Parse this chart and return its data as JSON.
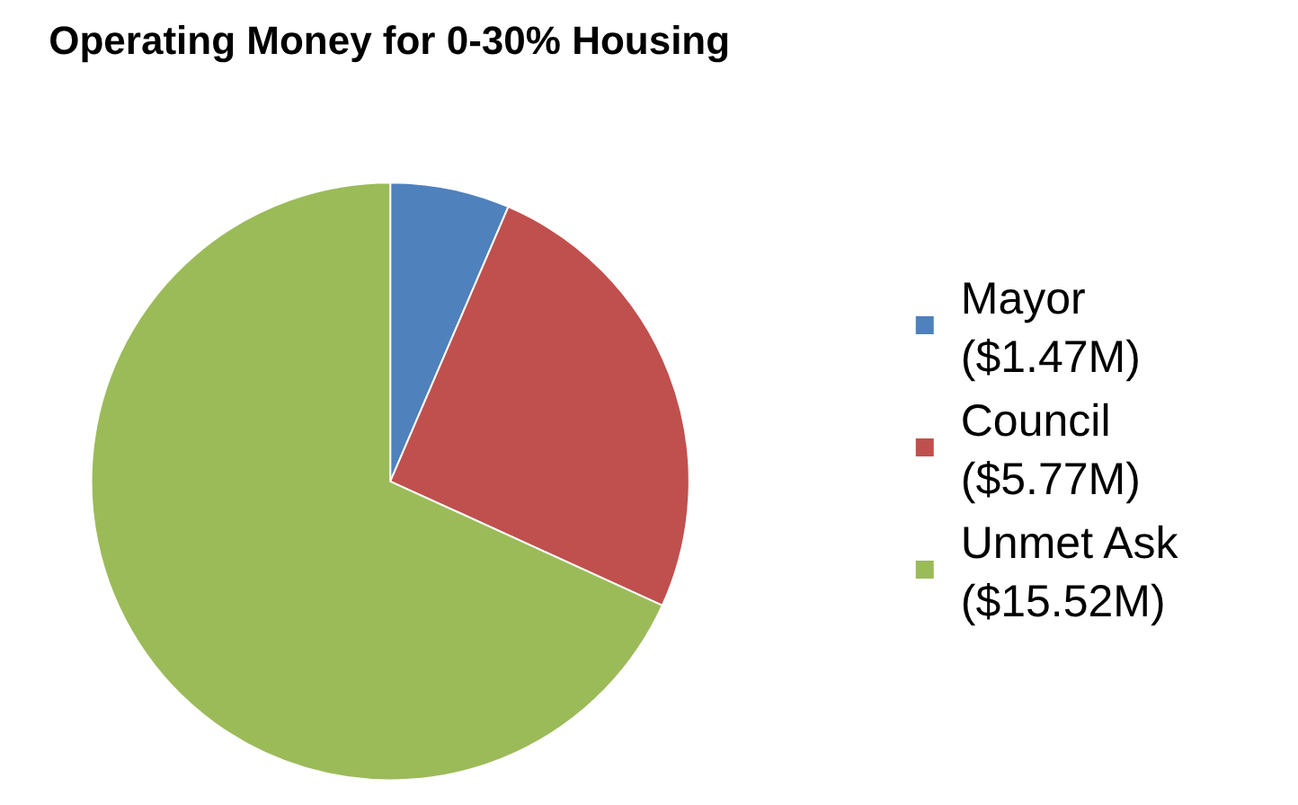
{
  "chart_data": {
    "type": "pie",
    "title": "Operating Money for 0-30% Housing",
    "categories": [
      "Mayor ($1.47M)",
      "Council ($5.77M)",
      "Unmet Ask ($15.52M)"
    ],
    "values": [
      1.47,
      5.77,
      15.52
    ],
    "colors": [
      "#4f81bd",
      "#c0504d",
      "#9bbb59"
    ],
    "legend": "right"
  }
}
